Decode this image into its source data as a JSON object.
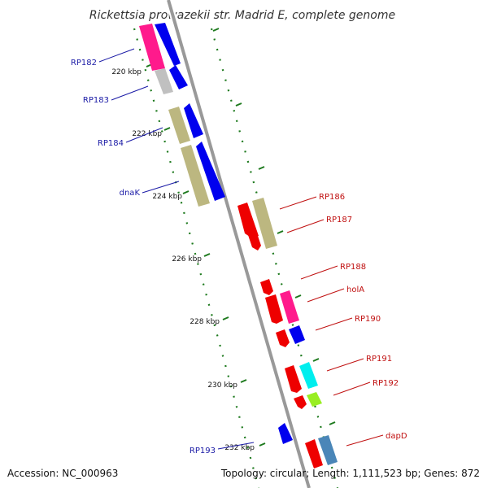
{
  "title": "Rickettsia prowazekii str. Madrid E, complete genome",
  "footer": {
    "accession": "Accession: NC_000963",
    "summary": "Topology: circular; Length: 1,111,523 bp; Genes: 872"
  },
  "kbp_labels": [
    "220 kbp",
    "222 kbp",
    "224 kbp",
    "226 kbp",
    "228 kbp",
    "230 kbp",
    "232 kbp"
  ],
  "colors": {
    "backbone": "#999999",
    "tick": "#1e7a1e",
    "left_label": "#1a1aa6",
    "right_label": "#c01010"
  },
  "left_genes": [
    {
      "name": "RP182"
    },
    {
      "name": "RP183"
    },
    {
      "name": "RP184"
    },
    {
      "name": "dnaK"
    },
    {
      "name": "RP193"
    }
  ],
  "right_genes": [
    {
      "name": "RP186"
    },
    {
      "name": "RP187"
    },
    {
      "name": "RP188"
    },
    {
      "name": "holA"
    },
    {
      "name": "RP190"
    },
    {
      "name": "RP191"
    },
    {
      "name": "RP192"
    },
    {
      "name": "dapD"
    }
  ]
}
